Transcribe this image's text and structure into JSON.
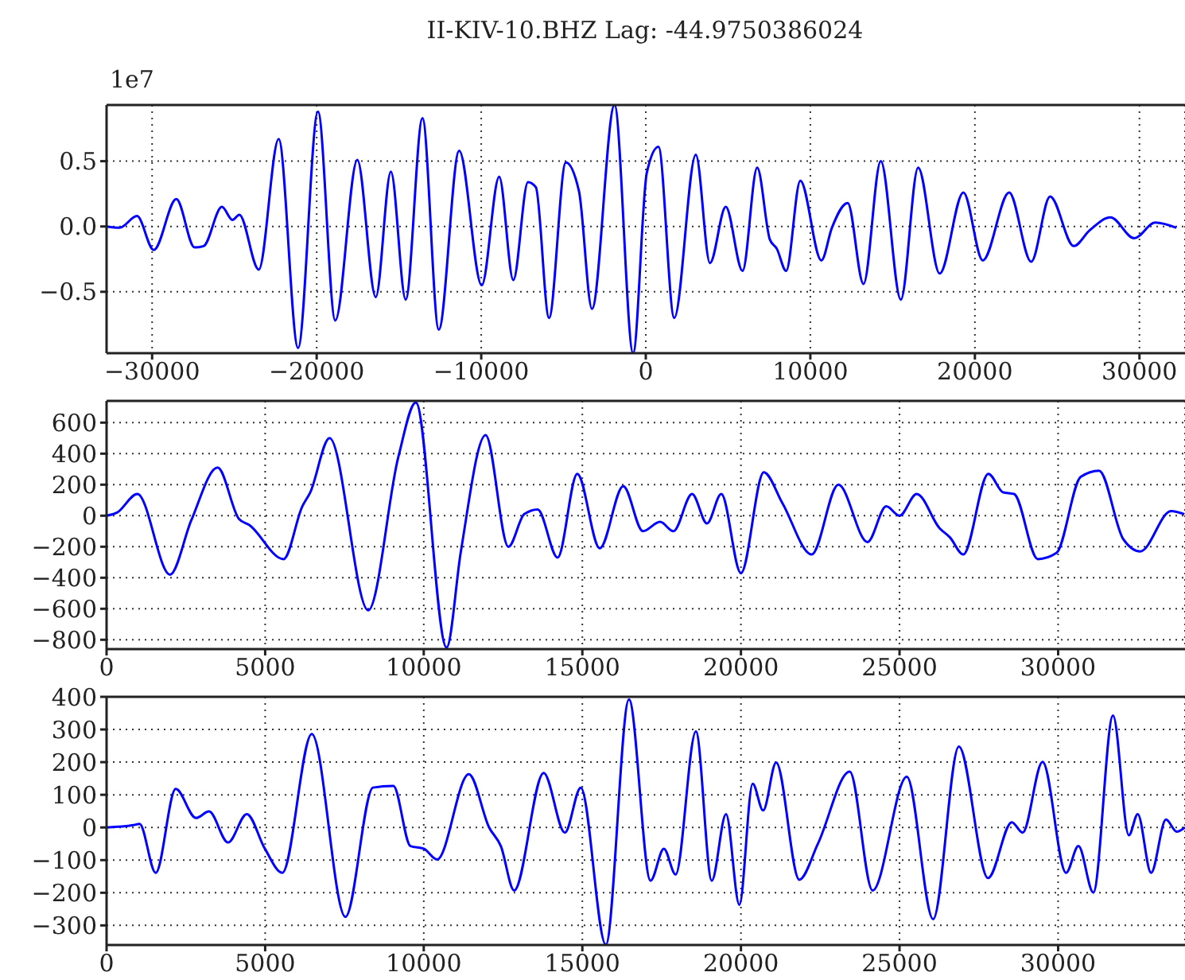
{
  "chart_data": [
    {
      "type": "line",
      "title": "II-KIV-10.BHZ Lag: -44.9750386024",
      "annotations": [
        "1e7"
      ],
      "color": "#0000ff",
      "grid": true,
      "xlim": [
        -32768,
        32768
      ],
      "ylim": [
        -0.97,
        0.93
      ],
      "xticks": [
        {
          "value": -30000,
          "label": "−30000"
        },
        {
          "value": -20000,
          "label": "−20000"
        },
        {
          "value": -10000,
          "label": "−10000"
        },
        0,
        10000,
        20000,
        30000
      ],
      "yticks": [
        {
          "value": -0.5,
          "label": "−0.5"
        },
        {
          "value": 0,
          "label": "0.0"
        },
        0.5
      ],
      "x": [
        -32760,
        -31980,
        -30920,
        -29900,
        -28530,
        -27420,
        -26870,
        -25760,
        -25120,
        -24700,
        -23520,
        -22310,
        -21130,
        -19920,
        -18870,
        -17530,
        -16410,
        -15490,
        -14590,
        -13570,
        -12580,
        -11340,
        -9970,
        -8910,
        -8050,
        -7160,
        -6680,
        -5880,
        -4860,
        -4060,
        -3270,
        -1900,
        -770,
        60,
        770,
        1730,
        3040,
        3900,
        4860,
        5880,
        6770,
        7540,
        7960,
        8530,
        9390,
        10670,
        11310,
        12270,
        13230,
        14280,
        15500,
        16550,
        17860,
        19300,
        20480,
        22080,
        23420,
        24570,
        26010,
        26970,
        28240,
        29680,
        30960,
        32240
      ],
      "values": [
        0,
        -0.01,
        0.08,
        -0.18,
        0.21,
        -0.16,
        -0.15,
        0.15,
        0.05,
        0.09,
        -0.33,
        0.67,
        -0.93,
        0.88,
        -0.72,
        0.51,
        -0.54,
        0.42,
        -0.56,
        0.83,
        -0.79,
        0.58,
        -0.45,
        0.38,
        -0.41,
        0.34,
        0.3,
        -0.7,
        0.49,
        0.27,
        -0.63,
        0.93,
        -0.97,
        0.41,
        0.61,
        -0.7,
        0.55,
        -0.28,
        0.15,
        -0.34,
        0.45,
        -0.1,
        -0.17,
        -0.34,
        0.35,
        -0.26,
        -0.01,
        0.18,
        -0.44,
        0.5,
        -0.56,
        0.45,
        -0.36,
        0.26,
        -0.26,
        0.26,
        -0.27,
        0.23,
        -0.15,
        -0.03,
        0.07,
        -0.09,
        0.03,
        -0.01
      ]
    },
    {
      "type": "line",
      "color": "#0000ff",
      "grid": true,
      "xlim": [
        0,
        34000
      ],
      "ylim": [
        -860,
        740
      ],
      "xticks": [
        0,
        5000,
        10000,
        15000,
        20000,
        25000,
        30000
      ],
      "yticks": [
        {
          "value": -800,
          "label": "−800"
        },
        {
          "value": -600,
          "label": "−600"
        },
        {
          "value": -400,
          "label": "−400"
        },
        {
          "value": -200,
          "label": "−200"
        },
        0,
        200,
        400,
        600
      ],
      "x": [
        0,
        330,
        970,
        2000,
        2670,
        3500,
        4170,
        4500,
        5580,
        6170,
        6420,
        7030,
        8250,
        9200,
        9750,
        10720,
        11170,
        11950,
        12670,
        13170,
        13590,
        14220,
        14840,
        15550,
        16290,
        16910,
        17450,
        17870,
        18460,
        18930,
        19380,
        20000,
        20720,
        21310,
        22230,
        23070,
        23990,
        24580,
        25000,
        25540,
        26260,
        26590,
        27010,
        27800,
        28270,
        28610,
        29360,
        29950,
        30710,
        31290,
        32050,
        32590,
        33560,
        33980
      ],
      "values": [
        0,
        20,
        140,
        -380,
        -30,
        310,
        -20,
        -60,
        -280,
        60,
        150,
        500,
        -610,
        380,
        730,
        -850,
        -230,
        520,
        -200,
        10,
        40,
        -270,
        270,
        -210,
        190,
        -100,
        -40,
        -100,
        140,
        -50,
        140,
        -370,
        280,
        80,
        -250,
        200,
        -170,
        60,
        0,
        140,
        -80,
        -140,
        -250,
        270,
        150,
        140,
        -280,
        -240,
        250,
        290,
        -150,
        -230,
        30,
        10
      ]
    },
    {
      "type": "line",
      "color": "#0000ff",
      "grid": true,
      "xlim": [
        0,
        34000
      ],
      "ylim": [
        -360,
        400
      ],
      "xticks": [
        0,
        5000,
        10000,
        15000,
        20000,
        25000,
        30000
      ],
      "yticks": [
        {
          "value": -300,
          "label": "−300"
        },
        {
          "value": -200,
          "label": "−200"
        },
        {
          "value": -100,
          "label": "−100"
        },
        0,
        100,
        200,
        300,
        400
      ],
      "x": [
        0,
        840,
        1040,
        1550,
        2180,
        2820,
        3230,
        3830,
        4420,
        4990,
        5540,
        6470,
        7530,
        8400,
        9040,
        9580,
        10000,
        10420,
        11420,
        12060,
        12430,
        12850,
        13780,
        14450,
        14950,
        15740,
        16470,
        17150,
        17570,
        17940,
        18580,
        19080,
        19530,
        19950,
        20370,
        20700,
        21110,
        21840,
        22430,
        23430,
        24150,
        25230,
        26060,
        26870,
        27790,
        28540,
        28880,
        29510,
        30250,
        30640,
        31110,
        31730,
        32230,
        32510,
        32930,
        33400,
        33740,
        34000
      ],
      "values": [
        0,
        7,
        11,
        -139,
        118,
        29,
        49,
        -46,
        41,
        -65,
        -139,
        286,
        -274,
        122,
        127,
        -57,
        -65,
        -98,
        163,
        0,
        -57,
        -193,
        167,
        -16,
        122,
        -359,
        392,
        -163,
        -65,
        -144,
        294,
        -163,
        41,
        -237,
        134,
        52,
        199,
        -160,
        -49,
        171,
        -193,
        155,
        -281,
        248,
        -155,
        16,
        -16,
        201,
        -139,
        -57,
        -199,
        343,
        -24,
        41,
        -139,
        24,
        -13,
        0
      ]
    }
  ]
}
